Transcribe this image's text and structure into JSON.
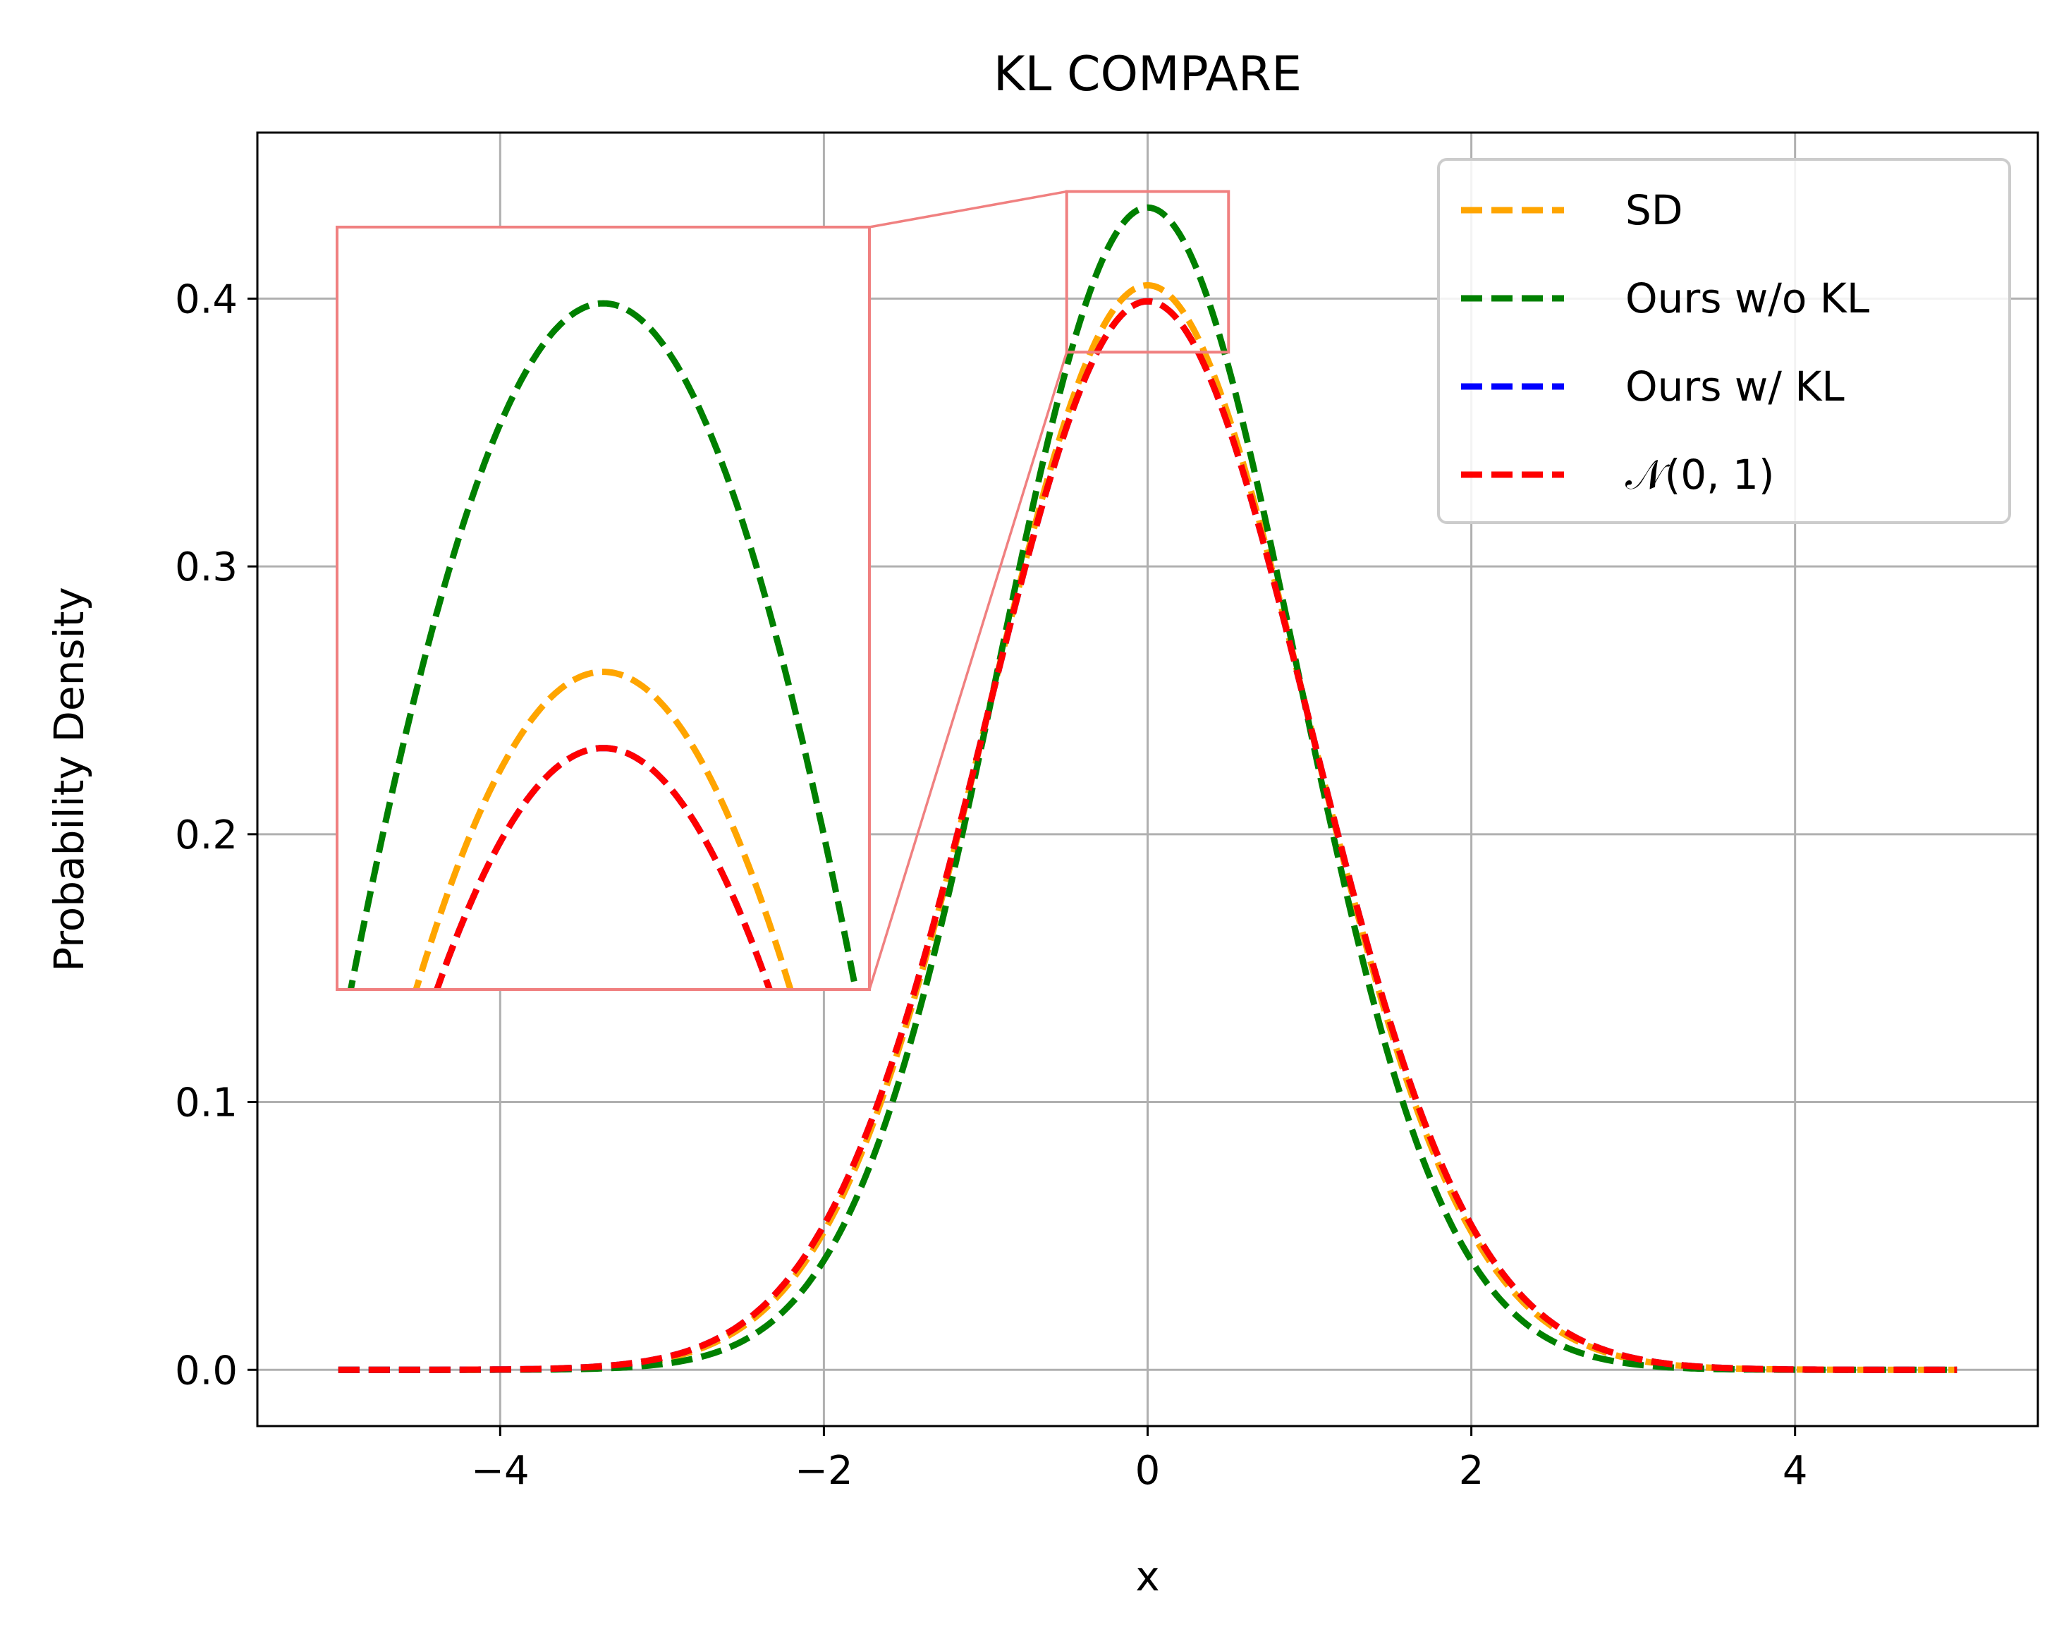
{
  "chart_data": {
    "type": "line",
    "title": "KL COMPARE",
    "xlabel": "x",
    "ylabel": "Probability Density",
    "xlim": [
      -5.5,
      5.5
    ],
    "ylim": [
      -0.021,
      0.462
    ],
    "x_ticks": [
      -4,
      -2,
      0,
      2,
      4
    ],
    "x_tick_labels": [
      "−4",
      "−2",
      "0",
      "2",
      "4"
    ],
    "y_ticks": [
      0.0,
      0.1,
      0.2,
      0.3,
      0.4
    ],
    "y_tick_labels": [
      "0.0",
      "0.1",
      "0.2",
      "0.3",
      "0.4"
    ],
    "grid": true,
    "line_style": "dashed",
    "x_range": [
      -5,
      5
    ],
    "legend_position": "upper-right",
    "series": [
      {
        "name": "SD",
        "color": "#ffa500",
        "mean": 0.0,
        "std": 0.985,
        "peak": 0.405
      },
      {
        "name": "Ours w/o KL",
        "color": "#008000",
        "mean": 0.0,
        "std": 0.92,
        "peak": 0.434
      },
      {
        "name": "Ours w/ KL",
        "color": "#0000ff",
        "mean": 0.0,
        "std": 1.0,
        "peak": 0.399
      },
      {
        "name": "𝒩(0, 1)",
        "color": "#ff0000",
        "mean": 0.0,
        "std": 1.0,
        "peak": 0.399
      }
    ],
    "inset": {
      "zoom_xlim": [
        -0.5,
        0.5
      ],
      "zoom_ylim": [
        0.38,
        0.44
      ],
      "border_color": "#f08080"
    }
  }
}
